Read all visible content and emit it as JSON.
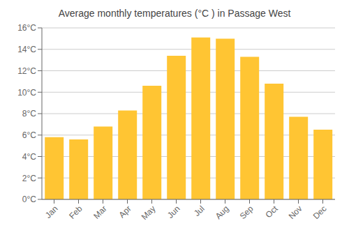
{
  "chart_data": {
    "type": "bar",
    "title": "Average monthly temperatures (°C ) in Passage West",
    "categories": [
      "Jan",
      "Feb",
      "Mar",
      "Apr",
      "May",
      "Jun",
      "Jul",
      "Aug",
      "Sep",
      "Oct",
      "Nov",
      "Dec"
    ],
    "values": [
      5.8,
      5.6,
      6.8,
      8.3,
      10.6,
      13.4,
      15.1,
      15.0,
      13.3,
      10.8,
      7.7,
      6.5
    ],
    "color": "#FFC533",
    "ylim": [
      0,
      16
    ],
    "yticks": [
      {
        "value": 0,
        "label": "0°C"
      },
      {
        "value": 2,
        "label": "2°C"
      },
      {
        "value": 4,
        "label": "4°C"
      },
      {
        "value": 6,
        "label": "6°C"
      },
      {
        "value": 8,
        "label": "8°C"
      },
      {
        "value": 10,
        "label": "10°C"
      },
      {
        "value": 12,
        "label": "12°C"
      },
      {
        "value": 14,
        "label": "14°C"
      },
      {
        "value": 16,
        "label": "16°C"
      }
    ],
    "grid": true
  }
}
